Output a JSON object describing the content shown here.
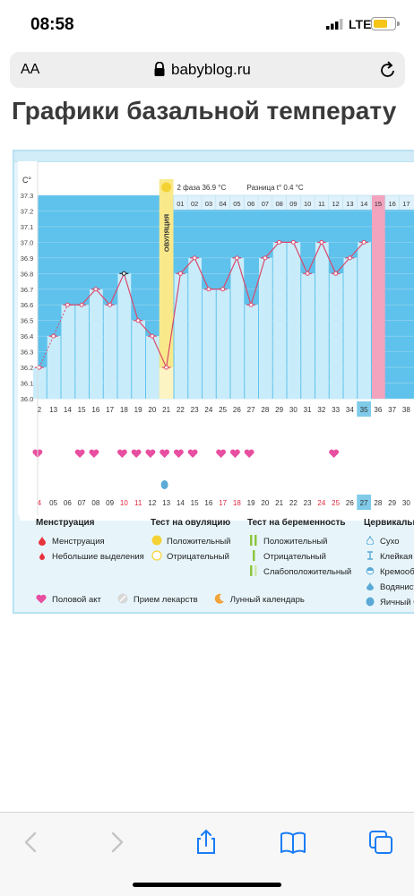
{
  "status_bar": {
    "time": "08:58",
    "network": "LTE"
  },
  "browser": {
    "aa_label": "AA",
    "url": "babyblog.ru"
  },
  "page": {
    "title": "Графики базальной температу"
  },
  "chart": {
    "y_unit": "C°",
    "y_ticks": [
      "37.3",
      "37.2",
      "37.1",
      "37.0",
      "36.9",
      "36.8",
      "36.7",
      "36.6",
      "36.5",
      "36.4",
      "36.3",
      "36.2",
      "36.1",
      "36.0"
    ],
    "ovulation_label": "ОВУЛЯЦИЯ",
    "phase_text": "2 фаза 36.9 °С",
    "diff_text": "Разница t° 0.4 °С",
    "day_numbers": [
      "01",
      "02",
      "03",
      "04",
      "05",
      "06",
      "07",
      "08",
      "09",
      "10",
      "11",
      "12",
      "13",
      "14",
      "15",
      "16",
      "17"
    ],
    "cycle_days": [
      "2",
      "13",
      "14",
      "15",
      "16",
      "17",
      "18",
      "19",
      "20",
      "21",
      "22",
      "23",
      "24",
      "25",
      "26",
      "27",
      "28",
      "29",
      "30",
      "31",
      "32",
      "33",
      "34",
      "35",
      "36",
      "37",
      "38"
    ],
    "calendar_days": [
      "4",
      "05",
      "06",
      "07",
      "08",
      "09",
      "10",
      "11",
      "12",
      "13",
      "14",
      "15",
      "16",
      "17",
      "18",
      "19",
      "20",
      "21",
      "22",
      "23",
      "24",
      "25",
      "26",
      "27",
      "28",
      "29",
      "30"
    ],
    "red_calendar_days": [
      "4",
      "10",
      "11",
      "17",
      "18",
      "24",
      "25"
    ],
    "highlight_day": "35",
    "highlight_calendar_day": "27"
  },
  "chart_data": {
    "type": "line",
    "title": "",
    "xlabel": "",
    "ylabel": "C°",
    "ylim": [
      36.0,
      37.3
    ],
    "x": [
      "12",
      "13",
      "14",
      "15",
      "16",
      "17",
      "18",
      "19",
      "20",
      "21",
      "22",
      "23",
      "24",
      "25",
      "26",
      "27",
      "28",
      "29",
      "30",
      "31",
      "32",
      "33",
      "34",
      "35"
    ],
    "series": [
      {
        "values": [
          36.2,
          36.4,
          36.6,
          36.6,
          36.7,
          36.6,
          36.8,
          36.5,
          36.4,
          36.2,
          36.8,
          36.9,
          36.7,
          36.7,
          36.9,
          36.6,
          36.9,
          37.0,
          37.0,
          36.8,
          37.0,
          36.8,
          36.9,
          37.0
        ]
      }
    ],
    "ovulation_day": "21",
    "grid": true
  },
  "legend": {
    "menstruation": {
      "header": "Менструация",
      "items": [
        "Менструация",
        "Небольшие выделения"
      ]
    },
    "ovulation_test": {
      "header": "Тест на овуляцию",
      "items": [
        "Положительный",
        "Отрицательный"
      ]
    },
    "pregnancy_test": {
      "header": "Тест на беременность",
      "items": [
        "Положительный",
        "Отрицательный",
        "Слабоположительный"
      ]
    },
    "cervical": {
      "header": "Цервикальн",
      "items": [
        "Сухо",
        "Клейкая",
        "Кремообр",
        "Водяниста",
        "Яичный б"
      ]
    },
    "bottom": [
      "Половой акт",
      "Прием лекарств",
      "Лунный календарь"
    ],
    "colors": {
      "menstruation": "#e8323c",
      "ovulation": "#f5d234",
      "pregnancy": "#8cc63f",
      "cervical": "#5aa9d6",
      "intercourse": "#e94fa0",
      "moon": "#f2a33a"
    }
  }
}
